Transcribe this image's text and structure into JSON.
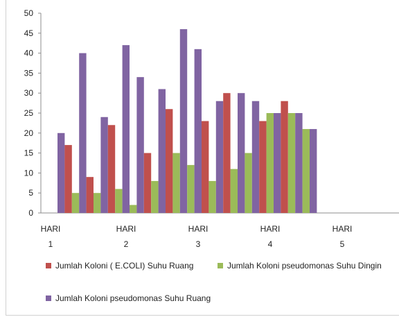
{
  "chart_data": {
    "type": "bar",
    "categories": [
      [
        "HARI",
        "1"
      ],
      [
        "HARI",
        "2"
      ],
      [
        "HARI",
        "3"
      ],
      [
        "HARI",
        "4"
      ],
      [
        "HARI",
        "5"
      ]
    ],
    "ylim": [
      0,
      50
    ],
    "yticks": [
      0,
      5,
      10,
      15,
      20,
      25,
      30,
      35,
      40,
      45,
      50
    ],
    "grid": false,
    "legend_position": "bottom",
    "bars": [
      {
        "series": 2,
        "value": 20
      },
      {
        "series": 0,
        "value": 17
      },
      {
        "series": 1,
        "value": 5
      },
      {
        "series": 2,
        "value": 40
      },
      {
        "series": 0,
        "value": 9
      },
      {
        "series": 1,
        "value": 5
      },
      {
        "series": 2,
        "value": 24
      },
      {
        "series": 0,
        "value": 22
      },
      {
        "series": 1,
        "value": 6
      },
      {
        "series": 2,
        "value": 42
      },
      {
        "series": 1,
        "value": 2
      },
      {
        "series": 2,
        "value": 34
      },
      {
        "series": 0,
        "value": 15
      },
      {
        "series": 1,
        "value": 8
      },
      {
        "series": 2,
        "value": 31
      },
      {
        "series": 0,
        "value": 26
      },
      {
        "series": 1,
        "value": 15
      },
      {
        "series": 2,
        "value": 46
      },
      {
        "series": 1,
        "value": 12
      },
      {
        "series": 2,
        "value": 41
      },
      {
        "series": 0,
        "value": 23
      },
      {
        "series": 1,
        "value": 8
      },
      {
        "series": 2,
        "value": 28
      },
      {
        "series": 0,
        "value": 30
      },
      {
        "series": 1,
        "value": 11
      },
      {
        "series": 2,
        "value": 30
      },
      {
        "series": 1,
        "value": 15
      },
      {
        "series": 2,
        "value": 28
      },
      {
        "series": 0,
        "value": 23
      },
      {
        "series": 1,
        "value": 25
      },
      {
        "series": 2,
        "value": 25
      },
      {
        "series": 0,
        "value": 28
      },
      {
        "series": 1,
        "value": 25
      },
      {
        "series": 2,
        "value": 25
      },
      {
        "series": 1,
        "value": 21
      },
      {
        "series": 2,
        "value": 21
      }
    ],
    "series": [
      {
        "name": "Jumlah Koloni ( E.COLI) Suhu Ruang",
        "color": "#c0504d"
      },
      {
        "name": "Jumlah Koloni pseudomonas Suhu Dingin",
        "color": "#9bbb59"
      },
      {
        "name": "Jumlah Koloni pseudomonas Suhu Ruang",
        "color": "#8064a2"
      }
    ]
  }
}
